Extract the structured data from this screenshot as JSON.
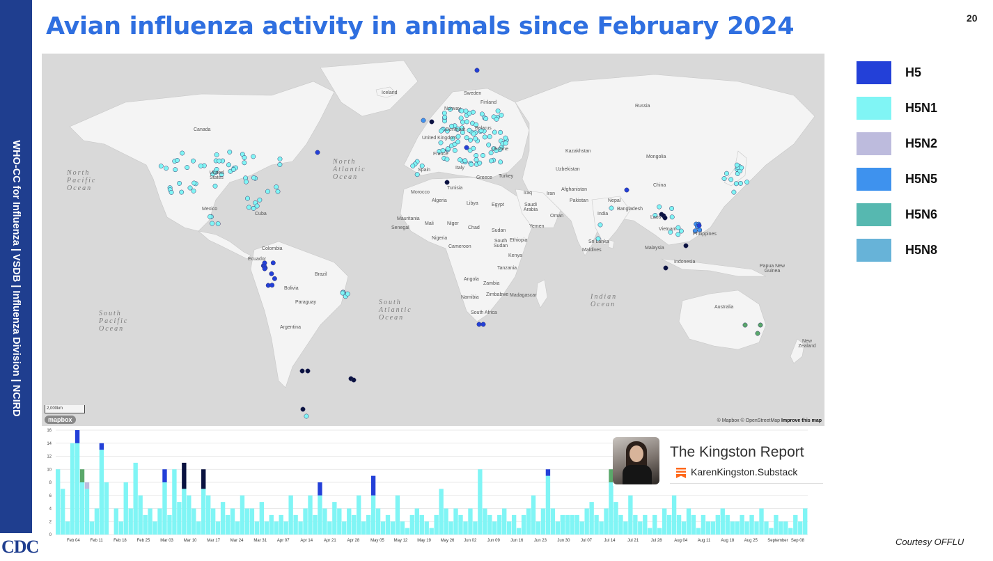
{
  "slide": {
    "title": "Avian influenza activity in animals since February 2024",
    "page_number": "20",
    "sidebar_text": "WHO-CC for Influenza   |   VSDB | Influenza Division   |   NCIRD",
    "logo_text": "CDC",
    "courtesy": "Courtesy OFFLU"
  },
  "legend": [
    {
      "label": "H5",
      "color": "#2340d8"
    },
    {
      "label": "H5N1",
      "color": "#80f5f5"
    },
    {
      "label": "H5N2",
      "color": "#bdbbdd"
    },
    {
      "label": "H5N5",
      "color": "#3e92ee"
    },
    {
      "label": "H5N6",
      "color": "#56b8b0"
    },
    {
      "label": "H5N8",
      "color": "#67b3d8"
    }
  ],
  "map": {
    "country_labels": [
      "Iceland",
      "Sweden",
      "Finland",
      "Norway",
      "Russia",
      "Canada",
      "Denmark",
      "United Kingdom",
      "Belarus",
      "Ukraine",
      "France",
      "Spain",
      "Italy",
      "Greece",
      "Turkey",
      "Kazakhstan",
      "Mongolia",
      "Uzbekistan",
      "China",
      "Afghanistan",
      "Iran",
      "Iraq",
      "Pakistan",
      "Nepal",
      "India",
      "Bangladesh",
      "Laos",
      "Vietnam",
      "Philippines",
      "Sri Lanka",
      "Maldives",
      "Malaysia",
      "Indonesia",
      "Papua New Guinea",
      "Australia",
      "New Zealand",
      "United States",
      "Mexico",
      "Cuba",
      "Colombia",
      "Ecuador",
      "Brazil",
      "Bolivia",
      "Paraguay",
      "Argentina",
      "Morocco",
      "Tunisia",
      "Algeria",
      "Libya",
      "Egypt",
      "Saudi Arabia",
      "Oman",
      "Yemen",
      "Mauritania",
      "Mali",
      "Niger",
      "Chad",
      "Senegal",
      "Sudan",
      "South Sudan",
      "Ethiopia",
      "Nigeria",
      "Cameroon",
      "Kenya",
      "Tanzania",
      "Angola",
      "Zambia",
      "Namibia",
      "Zimbabwe",
      "Madagascar",
      "South Africa"
    ],
    "ocean_labels": [
      {
        "text": "North\nPacific\nOcean"
      },
      {
        "text": "North\nAtlantic\nOcean"
      },
      {
        "text": "South\nAtlantic\nOcean"
      },
      {
        "text": "Indian\nOcean"
      },
      {
        "text": "South\nPacific\nOcean"
      }
    ],
    "scale": "2,000km",
    "mapbox_logo": "mapbox",
    "attribution": "© Mapbox © OpenStreetMap",
    "attribution_link": "Improve this map"
  },
  "chart_data": {
    "type": "bar",
    "stacked": true,
    "ylim": [
      0,
      16
    ],
    "yticks": [
      0,
      2,
      4,
      6,
      8,
      10,
      12,
      14,
      16
    ],
    "xtick_labels": [
      "Feb 04",
      "Feb 11",
      "Feb 18",
      "Feb 25",
      "Mar 03",
      "Mar 10",
      "Mar 17",
      "Mar 24",
      "Mar 31",
      "Apr 07",
      "Apr 14",
      "Apr 21",
      "Apr 28",
      "May 05",
      "May 12",
      "May 19",
      "May 26",
      "Jun 02",
      "Jun 09",
      "Jun 16",
      "Jun 23",
      "Jun 30",
      "Jul 07",
      "Jul 14",
      "Jul 21",
      "Jul 28",
      "Aug 04",
      "Aug 11",
      "Aug 18",
      "Aug 25",
      "September",
      "Sep 08"
    ],
    "series_colors": {
      "H5": "#2340d8",
      "H5N1": "#80f5f5",
      "H5N2": "#bdbbdd",
      "H5N5": "#3e92ee",
      "H5N6": "#5aa86a",
      "H5N8": "#67b3d8",
      "Other": "#0a1240"
    },
    "bars": [
      [
        10,
        0
      ],
      [
        7,
        0
      ],
      [
        2,
        0
      ],
      [
        14,
        0
      ],
      [
        16,
        0
      ],
      [
        10,
        0
      ],
      [
        8,
        0
      ],
      [
        2,
        0
      ],
      [
        4,
        0
      ],
      [
        14,
        0
      ],
      [
        8,
        0
      ],
      [
        0,
        0
      ],
      [
        4,
        0
      ],
      [
        2,
        0
      ],
      [
        8,
        0
      ],
      [
        4,
        0
      ],
      [
        11,
        0
      ],
      [
        6,
        0
      ],
      [
        3,
        0
      ],
      [
        4,
        0
      ],
      [
        2,
        0
      ],
      [
        4,
        0
      ],
      [
        10,
        0
      ],
      [
        3,
        0
      ],
      [
        10,
        0
      ],
      [
        5,
        0
      ],
      [
        11,
        0
      ],
      [
        6,
        0
      ],
      [
        4,
        0
      ],
      [
        2,
        0
      ],
      [
        10,
        0
      ],
      [
        6,
        0
      ],
      [
        4,
        0
      ],
      [
        2,
        0
      ],
      [
        5,
        0
      ],
      [
        3,
        0
      ],
      [
        4,
        0
      ],
      [
        2,
        0
      ],
      [
        6,
        0
      ],
      [
        4,
        0
      ],
      [
        4,
        0
      ],
      [
        2,
        0
      ],
      [
        5,
        0
      ],
      [
        2,
        0
      ],
      [
        3,
        0
      ],
      [
        2,
        0
      ],
      [
        3,
        0
      ],
      [
        2,
        0
      ],
      [
        6,
        0
      ],
      [
        3,
        0
      ],
      [
        2,
        0
      ],
      [
        4,
        0
      ],
      [
        6,
        0
      ],
      [
        3,
        0
      ],
      [
        8,
        0
      ],
      [
        4,
        0
      ],
      [
        2,
        0
      ],
      [
        5,
        0
      ],
      [
        4,
        0
      ],
      [
        2,
        0
      ],
      [
        4,
        0
      ],
      [
        3,
        0
      ],
      [
        6,
        0
      ],
      [
        2,
        0
      ],
      [
        3,
        0
      ],
      [
        9,
        0
      ],
      [
        4,
        0
      ],
      [
        2,
        0
      ],
      [
        3,
        0
      ],
      [
        2,
        0
      ],
      [
        6,
        0
      ],
      [
        2,
        0
      ],
      [
        1,
        0
      ],
      [
        3,
        0
      ],
      [
        4,
        0
      ],
      [
        3,
        0
      ],
      [
        2,
        0
      ],
      [
        1,
        0
      ],
      [
        3,
        0
      ],
      [
        7,
        0
      ],
      [
        4,
        0
      ],
      [
        2,
        0
      ],
      [
        4,
        0
      ],
      [
        3,
        0
      ],
      [
        2,
        0
      ],
      [
        4,
        0
      ],
      [
        2,
        0
      ],
      [
        10,
        0
      ],
      [
        4,
        0
      ],
      [
        3,
        0
      ],
      [
        2,
        0
      ],
      [
        3,
        0
      ],
      [
        4,
        0
      ],
      [
        2,
        0
      ],
      [
        3,
        0
      ],
      [
        1,
        0
      ],
      [
        3,
        0
      ],
      [
        4,
        0
      ],
      [
        6,
        0
      ],
      [
        2,
        0
      ],
      [
        4,
        0
      ],
      [
        10,
        0
      ],
      [
        4,
        0
      ],
      [
        2,
        0
      ],
      [
        3,
        0
      ],
      [
        3,
        0
      ],
      [
        3,
        0
      ],
      [
        3,
        0
      ],
      [
        2,
        0
      ],
      [
        4,
        0
      ],
      [
        5,
        0
      ],
      [
        3,
        0
      ],
      [
        2,
        0
      ],
      [
        4,
        0
      ],
      [
        10,
        0
      ],
      [
        5,
        0
      ],
      [
        3,
        0
      ],
      [
        2,
        0
      ],
      [
        6,
        0
      ],
      [
        3,
        0
      ],
      [
        2,
        0
      ],
      [
        3,
        0
      ],
      [
        1,
        0
      ],
      [
        3,
        0
      ],
      [
        1,
        0
      ],
      [
        4,
        0
      ],
      [
        3,
        0
      ],
      [
        6,
        0
      ],
      [
        3,
        0
      ],
      [
        2,
        0
      ],
      [
        4,
        0
      ],
      [
        3,
        0
      ],
      [
        1,
        0
      ],
      [
        3,
        0
      ],
      [
        2,
        0
      ],
      [
        2,
        0
      ],
      [
        3,
        0
      ],
      [
        4,
        0
      ],
      [
        3,
        0
      ],
      [
        2,
        0
      ],
      [
        2,
        0
      ],
      [
        3,
        0
      ],
      [
        2,
        0
      ],
      [
        3,
        0
      ],
      [
        2,
        0
      ],
      [
        4,
        0
      ],
      [
        2,
        0
      ],
      [
        1,
        0
      ],
      [
        3,
        0
      ],
      [
        2,
        0
      ],
      [
        2,
        0
      ],
      [
        1,
        0
      ],
      [
        3,
        0
      ],
      [
        2,
        0
      ],
      [
        4,
        0
      ]
    ]
  },
  "kingston_card": {
    "title": "The Kingston Report",
    "url": "KarenKingston.Substack"
  }
}
